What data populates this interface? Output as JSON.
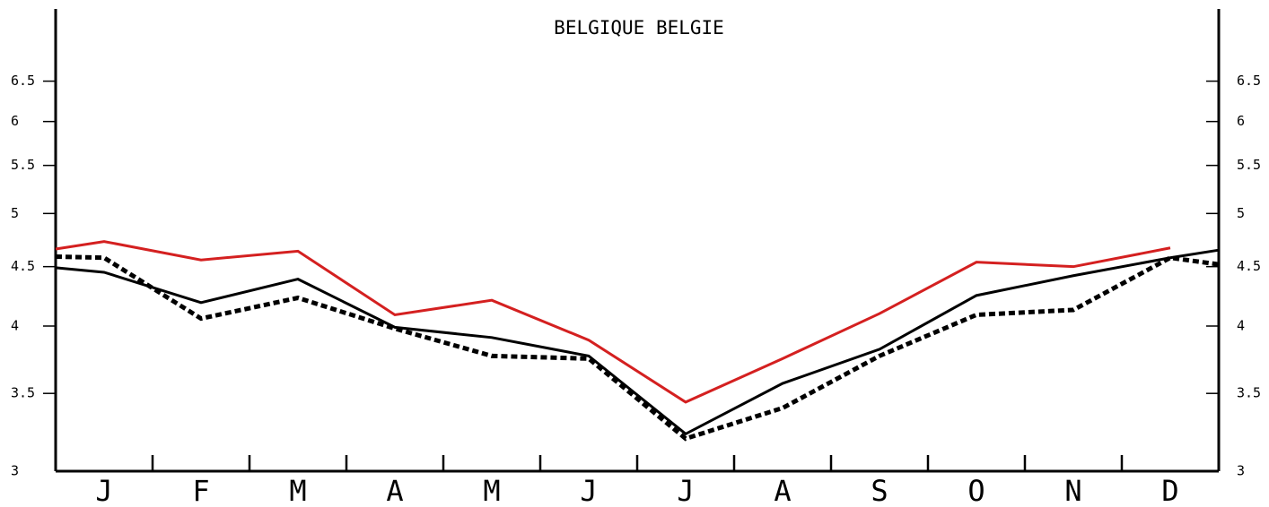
{
  "chart_data": {
    "type": "line",
    "title": "BELGIQUE BELGIE",
    "categories": [
      "J",
      "F",
      "M",
      "A",
      "M",
      "J",
      "J",
      "A",
      "S",
      "O",
      "N",
      "D"
    ],
    "xlim": [
      0,
      12
    ],
    "ylim": [
      3,
      7.5
    ],
    "log_scale": true,
    "yticks": [
      3,
      3.5,
      4,
      4.5,
      5,
      5.5,
      6,
      6.5
    ],
    "series": [
      {
        "color": "#d42020",
        "style": "solid",
        "x": [
          0,
          0.5,
          1.5,
          2.5,
          3.5,
          4.5,
          5.5,
          6.5,
          7.5,
          8.5,
          9.5,
          10.5,
          11.5
        ],
        "values": [
          4.66,
          4.73,
          4.56,
          4.64,
          4.09,
          4.21,
          3.89,
          3.44,
          3.75,
          4.1,
          4.54,
          4.5,
          4.67
        ]
      },
      {
        "color": "#000000",
        "style": "solid",
        "x": [
          0,
          0.5,
          1.5,
          2.5,
          3.5,
          4.5,
          5.5,
          6.5,
          7.5,
          8.5,
          9.5,
          10.5,
          11.5,
          12
        ],
        "values": [
          4.49,
          4.45,
          4.19,
          4.39,
          3.99,
          3.91,
          3.77,
          3.23,
          3.57,
          3.82,
          4.25,
          4.42,
          4.58,
          4.65
        ]
      },
      {
        "color": "#000000",
        "style": "dotted",
        "x": [
          0,
          0.5,
          1.5,
          2.5,
          3.5,
          4.5,
          5.5,
          6.5,
          7.5,
          8.5,
          9.5,
          10.5,
          11.5,
          12
        ],
        "values": [
          4.59,
          4.58,
          4.06,
          4.23,
          3.98,
          3.77,
          3.75,
          3.2,
          3.4,
          3.77,
          4.09,
          4.13,
          4.58,
          4.52
        ]
      }
    ]
  }
}
